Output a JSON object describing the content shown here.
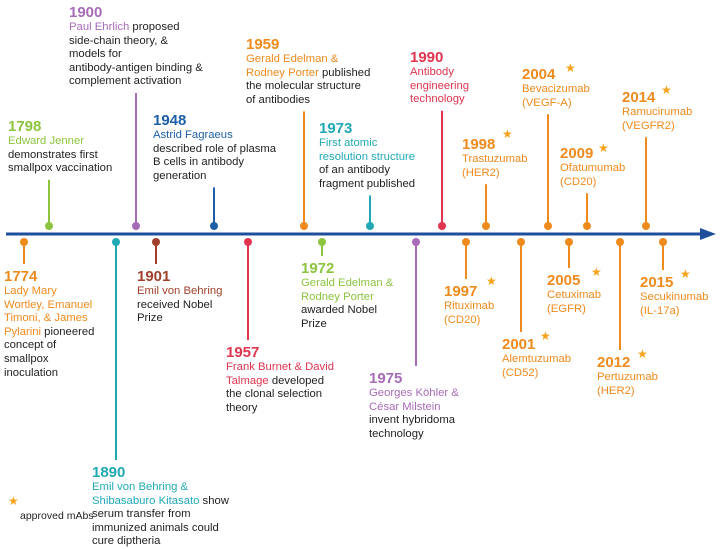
{
  "colors": {
    "arrow": "#1f4e9c",
    "green": "#8cc33f",
    "purple": "#a86bb8",
    "darkblue": "#1d5fa7",
    "orange": "#ef8a1d",
    "teal": "#20a9b5",
    "red": "#e0344f",
    "brown": "#a0402b",
    "star": "#f6a31a"
  },
  "star_icon": "star-icon",
  "events": [
    {
      "id": "e1798",
      "year": "1798",
      "color": "green",
      "side": "above",
      "star": false,
      "lines": [
        [
          {
            "t": "Edward Jenner",
            "c": true
          }
        ],
        [
          {
            "t": "demonstrates first",
            "c": false
          }
        ],
        [
          {
            "t": "smallpox vaccination",
            "c": false
          }
        ]
      ]
    },
    {
      "id": "e1900",
      "year": "1900",
      "color": "purple",
      "side": "above",
      "star": false,
      "lines": [
        [
          {
            "t": "Paul Ehrlich",
            "c": true
          },
          {
            "t": " proposed",
            "c": false
          }
        ],
        [
          {
            "t": "side-chain theory, &",
            "c": false
          }
        ],
        [
          {
            "t": "models for",
            "c": false
          }
        ],
        [
          {
            "t": "antibody-antigen binding &",
            "c": false
          }
        ],
        [
          {
            "t": "complement activation",
            "c": false
          }
        ]
      ]
    },
    {
      "id": "e1948",
      "year": "1948",
      "color": "darkblue",
      "side": "above",
      "star": false,
      "lines": [
        [
          {
            "t": "Astrid Fagraeus",
            "c": true
          }
        ],
        [
          {
            "t": "described role of plasma",
            "c": false
          }
        ],
        [
          {
            "t": "B cells in antibody",
            "c": false
          }
        ],
        [
          {
            "t": "generation",
            "c": false
          }
        ]
      ]
    },
    {
      "id": "e1959",
      "year": "1959",
      "color": "orange",
      "side": "above",
      "star": false,
      "lines": [
        [
          {
            "t": "Gerald Edelman &",
            "c": true
          }
        ],
        [
          {
            "t": "Rodney Porter",
            "c": true
          },
          {
            "t": " published",
            "c": false
          }
        ],
        [
          {
            "t": "the molecular structure",
            "c": false
          }
        ],
        [
          {
            "t": "of antibodies",
            "c": false
          }
        ]
      ]
    },
    {
      "id": "e1973",
      "year": "1973",
      "color": "teal",
      "side": "above",
      "star": false,
      "lines": [
        [
          {
            "t": "First atomic",
            "c": true
          }
        ],
        [
          {
            "t": "resolution structure",
            "c": true
          }
        ],
        [
          {
            "t": "of an antibody",
            "c": false
          }
        ],
        [
          {
            "t": "fragment published",
            "c": false
          }
        ]
      ]
    },
    {
      "id": "e1990",
      "year": "1990",
      "color": "red",
      "side": "above",
      "star": false,
      "lines": [
        [
          {
            "t": "Antibody",
            "c": true
          }
        ],
        [
          {
            "t": "engineering",
            "c": true
          }
        ],
        [
          {
            "t": "technology",
            "c": true
          }
        ]
      ]
    },
    {
      "id": "e1998",
      "year": "1998",
      "color": "orange",
      "side": "above",
      "star": true,
      "lines": [
        [
          {
            "t": "Trastuzumab",
            "c": true
          }
        ],
        [
          {
            "t": "(HER2)",
            "c": true
          }
        ]
      ]
    },
    {
      "id": "e2004",
      "year": "2004",
      "color": "orange",
      "side": "above",
      "star": true,
      "lines": [
        [
          {
            "t": "Bevacizumab",
            "c": true
          }
        ],
        [
          {
            "t": "(VEGF-A)",
            "c": true
          }
        ]
      ]
    },
    {
      "id": "e2009",
      "year": "2009",
      "color": "orange",
      "side": "above",
      "star": true,
      "lines": [
        [
          {
            "t": "Ofatumumab",
            "c": true
          }
        ],
        [
          {
            "t": "(CD20)",
            "c": true
          }
        ]
      ]
    },
    {
      "id": "e2014",
      "year": "2014",
      "color": "orange",
      "side": "above",
      "star": true,
      "lines": [
        [
          {
            "t": "Ramucirumab",
            "c": true
          }
        ],
        [
          {
            "t": "(VEGFR2)",
            "c": true
          }
        ]
      ]
    },
    {
      "id": "e1774",
      "year": "1774",
      "color": "orange",
      "side": "below",
      "star": false,
      "lines": [
        [
          {
            "t": "Lady Mary",
            "c": true
          }
        ],
        [
          {
            "t": "Wortley, Emanuel",
            "c": true
          }
        ],
        [
          {
            "t": "Timoni, & James",
            "c": true
          }
        ],
        [
          {
            "t": "Pylarini",
            "c": true
          },
          {
            "t": " pioneered",
            "c": false
          }
        ],
        [
          {
            "t": "concept of",
            "c": false
          }
        ],
        [
          {
            "t": "smallpox",
            "c": false
          }
        ],
        [
          {
            "t": "inoculation",
            "c": false
          }
        ]
      ]
    },
    {
      "id": "e1890",
      "year": "1890",
      "color": "teal",
      "side": "below",
      "star": false,
      "lines": [
        [
          {
            "t": "Emil von Behring &",
            "c": true
          }
        ],
        [
          {
            "t": "Shibasaburo Kitasato",
            "c": true
          },
          {
            "t": " show",
            "c": false
          }
        ],
        [
          {
            "t": "serum transfer from",
            "c": false
          }
        ],
        [
          {
            "t": "immunized animals could",
            "c": false
          }
        ],
        [
          {
            "t": "cure diptheria",
            "c": false
          }
        ]
      ]
    },
    {
      "id": "e1901",
      "year": "1901",
      "color": "brown",
      "side": "below",
      "star": false,
      "lines": [
        [
          {
            "t": "Emil von Behring",
            "c": true
          }
        ],
        [
          {
            "t": "received Nobel",
            "c": false
          }
        ],
        [
          {
            "t": "Prize",
            "c": false
          }
        ]
      ]
    },
    {
      "id": "e1957",
      "year": "1957",
      "color": "red",
      "side": "below",
      "star": false,
      "lines": [
        [
          {
            "t": "Frank Burnet & David",
            "c": true
          }
        ],
        [
          {
            "t": "Talmage",
            "c": true
          },
          {
            "t": " developed",
            "c": false
          }
        ],
        [
          {
            "t": "the clonal selection",
            "c": false
          }
        ],
        [
          {
            "t": "theory",
            "c": false
          }
        ]
      ]
    },
    {
      "id": "e1972",
      "year": "1972",
      "color": "green",
      "side": "below",
      "star": false,
      "lines": [
        [
          {
            "t": "Gerald Edelman &",
            "c": true
          }
        ],
        [
          {
            "t": "Rodney Porter",
            "c": true
          }
        ],
        [
          {
            "t": "awarded Nobel",
            "c": false
          }
        ],
        [
          {
            "t": "Prize",
            "c": false
          }
        ]
      ]
    },
    {
      "id": "e1975",
      "year": "1975",
      "color": "purple",
      "side": "below",
      "star": false,
      "lines": [
        [
          {
            "t": "Georges Köhler &",
            "c": true
          }
        ],
        [
          {
            "t": "César Milstein",
            "c": true
          }
        ],
        [
          {
            "t": "invent hybridoma",
            "c": false
          }
        ],
        [
          {
            "t": "technology",
            "c": false
          }
        ]
      ]
    },
    {
      "id": "e1997",
      "year": "1997",
      "color": "orange",
      "side": "below",
      "star": true,
      "lines": [
        [
          {
            "t": "Rituximab",
            "c": true
          }
        ],
        [
          {
            "t": "(CD20)",
            "c": true
          }
        ]
      ]
    },
    {
      "id": "e2001",
      "year": "2001",
      "color": "orange",
      "side": "below",
      "star": true,
      "lines": [
        [
          {
            "t": "Alemtuzumab",
            "c": true
          }
        ],
        [
          {
            "t": "(CD52)",
            "c": true
          }
        ]
      ]
    },
    {
      "id": "e2005",
      "year": "2005",
      "color": "orange",
      "side": "below",
      "star": true,
      "lines": [
        [
          {
            "t": "Cetuximab",
            "c": true
          }
        ],
        [
          {
            "t": "(EGFR)",
            "c": true
          }
        ]
      ]
    },
    {
      "id": "e2012",
      "year": "2012",
      "color": "orange",
      "side": "below",
      "star": true,
      "lines": [
        [
          {
            "t": "Pertuzumab",
            "c": true
          }
        ],
        [
          {
            "t": "(HER2)",
            "c": true
          }
        ]
      ]
    },
    {
      "id": "e2015",
      "year": "2015",
      "color": "orange",
      "side": "below",
      "star": true,
      "lines": [
        [
          {
            "t": "Secukinumab",
            "c": true
          }
        ],
        [
          {
            "t": "(IL-17a)",
            "c": true
          }
        ]
      ]
    }
  ],
  "legend": {
    "label": "approved mAbs"
  }
}
